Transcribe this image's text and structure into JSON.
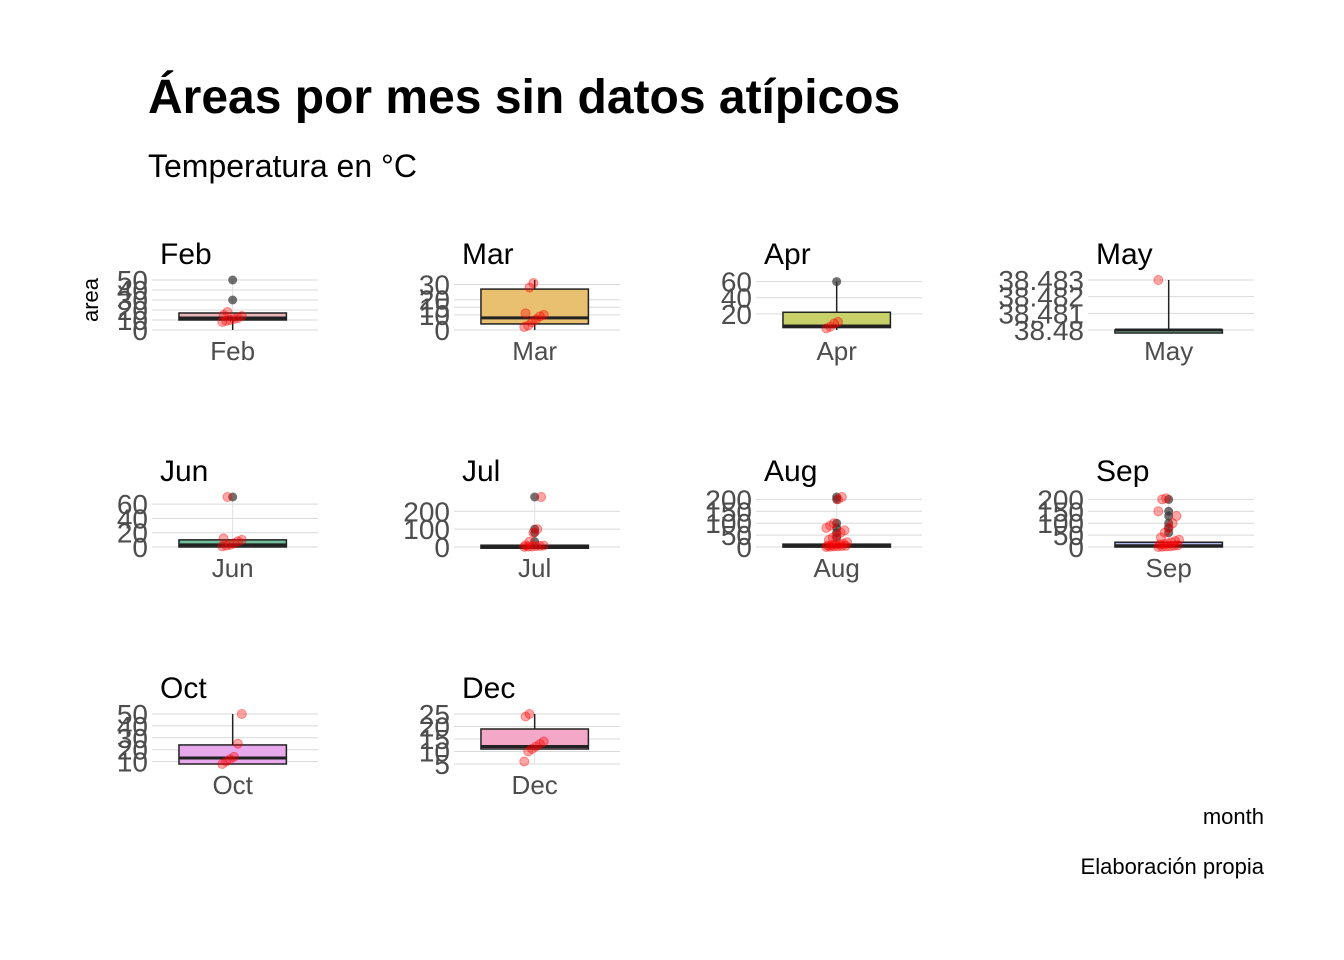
{
  "chart_data": {
    "type": "boxplot",
    "title": "Áreas por mes sin datos atípicos",
    "subtitle": "Temperatura en °C",
    "xlabel": "month",
    "ylabel": "area",
    "caption": "Elaboración propia",
    "panels": [
      {
        "month": "Feb",
        "fill": "#e8b4b8",
        "ylim": [
          0,
          50
        ],
        "ticks": [
          0,
          10,
          20,
          30,
          40,
          50
        ],
        "box": {
          "q1": 10,
          "median": 12,
          "q3": 17,
          "lower": 0,
          "upper": 17
        },
        "outliers": [
          30,
          50
        ],
        "points": [
          8,
          9,
          10,
          11,
          12,
          14,
          15,
          18
        ]
      },
      {
        "month": "Mar",
        "fill": "#e8c070",
        "ylim": [
          0,
          33
        ],
        "ticks": [
          0,
          10,
          15,
          20,
          30
        ],
        "box": {
          "q1": 4,
          "median": 8,
          "q3": 27,
          "lower": 0,
          "upper": 33
        },
        "outliers": [],
        "points": [
          2,
          3,
          5,
          7,
          9,
          10,
          11,
          28,
          31
        ]
      },
      {
        "month": "Apr",
        "fill": "#c8d06a",
        "ylim": [
          0,
          62
        ],
        "ticks": [
          20,
          40,
          60
        ],
        "box": {
          "q1": 3,
          "median": 5,
          "q3": 22,
          "lower": 0,
          "upper": 60
        },
        "outliers": [
          60
        ],
        "points": [
          2,
          4,
          8,
          10
        ]
      },
      {
        "month": "May",
        "fill": "#7fc8a0",
        "ylim": [
          38.48,
          38.483
        ],
        "ticks": [
          38.48,
          38.481,
          38.482,
          38.483
        ],
        "box": {
          "q1": 38.48,
          "median": 38.48,
          "q3": 38.48,
          "lower": 38.48,
          "upper": 38.483
        },
        "outliers": [],
        "points": [
          38.483
        ]
      },
      {
        "month": "Jun",
        "fill": "#6fbf9a",
        "ylim": [
          0,
          70
        ],
        "ticks": [
          0,
          20,
          40,
          60
        ],
        "box": {
          "q1": 0,
          "median": 3,
          "q3": 10,
          "lower": 0,
          "upper": 10
        },
        "outliers": [
          70
        ],
        "points": [
          1,
          2,
          3,
          5,
          8,
          10,
          12,
          70
        ]
      },
      {
        "month": "Jul",
        "fill": "#6ac8d0",
        "ylim": [
          0,
          280
        ],
        "ticks": [
          0,
          100,
          200
        ],
        "box": {
          "q1": 0,
          "median": 2,
          "q3": 10,
          "lower": 0,
          "upper": 10
        },
        "outliers": [
          30,
          80,
          100,
          280
        ],
        "points": [
          1,
          2,
          3,
          5,
          6,
          8,
          10,
          30,
          80,
          100,
          280
        ]
      },
      {
        "month": "Aug",
        "fill": "#7ab8e8",
        "ylim": [
          0,
          210
        ],
        "ticks": [
          0,
          50,
          100,
          150,
          200
        ],
        "box": {
          "q1": 0,
          "median": 4,
          "q3": 12,
          "lower": 0,
          "upper": 12
        },
        "outliers": [
          40,
          60,
          80,
          100,
          200,
          210
        ],
        "points": [
          0,
          1,
          2,
          3,
          4,
          5,
          6,
          8,
          10,
          12,
          15,
          20,
          30,
          40,
          50,
          60,
          70,
          80,
          90,
          100,
          200,
          210
        ]
      },
      {
        "month": "Sep",
        "fill": "#b0b8f0",
        "ylim": [
          0,
          210
        ],
        "ticks": [
          0,
          50,
          100,
          150,
          200
        ],
        "box": {
          "q1": 0,
          "median": 5,
          "q3": 20,
          "lower": 0,
          "upper": 20
        },
        "outliers": [
          60,
          80,
          100,
          130,
          150,
          200
        ],
        "points": [
          0,
          1,
          2,
          3,
          5,
          7,
          10,
          12,
          15,
          20,
          25,
          30,
          40,
          60,
          80,
          100,
          130,
          150,
          200,
          205
        ]
      },
      {
        "month": "Oct",
        "fill": "#e8a8ec",
        "ylim": [
          8,
          50
        ],
        "ticks": [
          10,
          20,
          30,
          40,
          50
        ],
        "box": {
          "q1": 8,
          "median": 13,
          "q3": 24,
          "lower": 8,
          "upper": 50
        },
        "outliers": [],
        "points": [
          8,
          10,
          12,
          14,
          25,
          50
        ]
      },
      {
        "month": "Dec",
        "fill": "#f4a8c8",
        "ylim": [
          5,
          25
        ],
        "ticks": [
          5,
          10,
          15,
          20,
          25
        ],
        "box": {
          "q1": 11,
          "median": 12,
          "q3": 19,
          "lower": 11,
          "upper": 25
        },
        "outliers": [],
        "points": [
          6,
          10,
          11,
          12,
          13,
          14,
          24,
          25
        ]
      }
    ]
  }
}
